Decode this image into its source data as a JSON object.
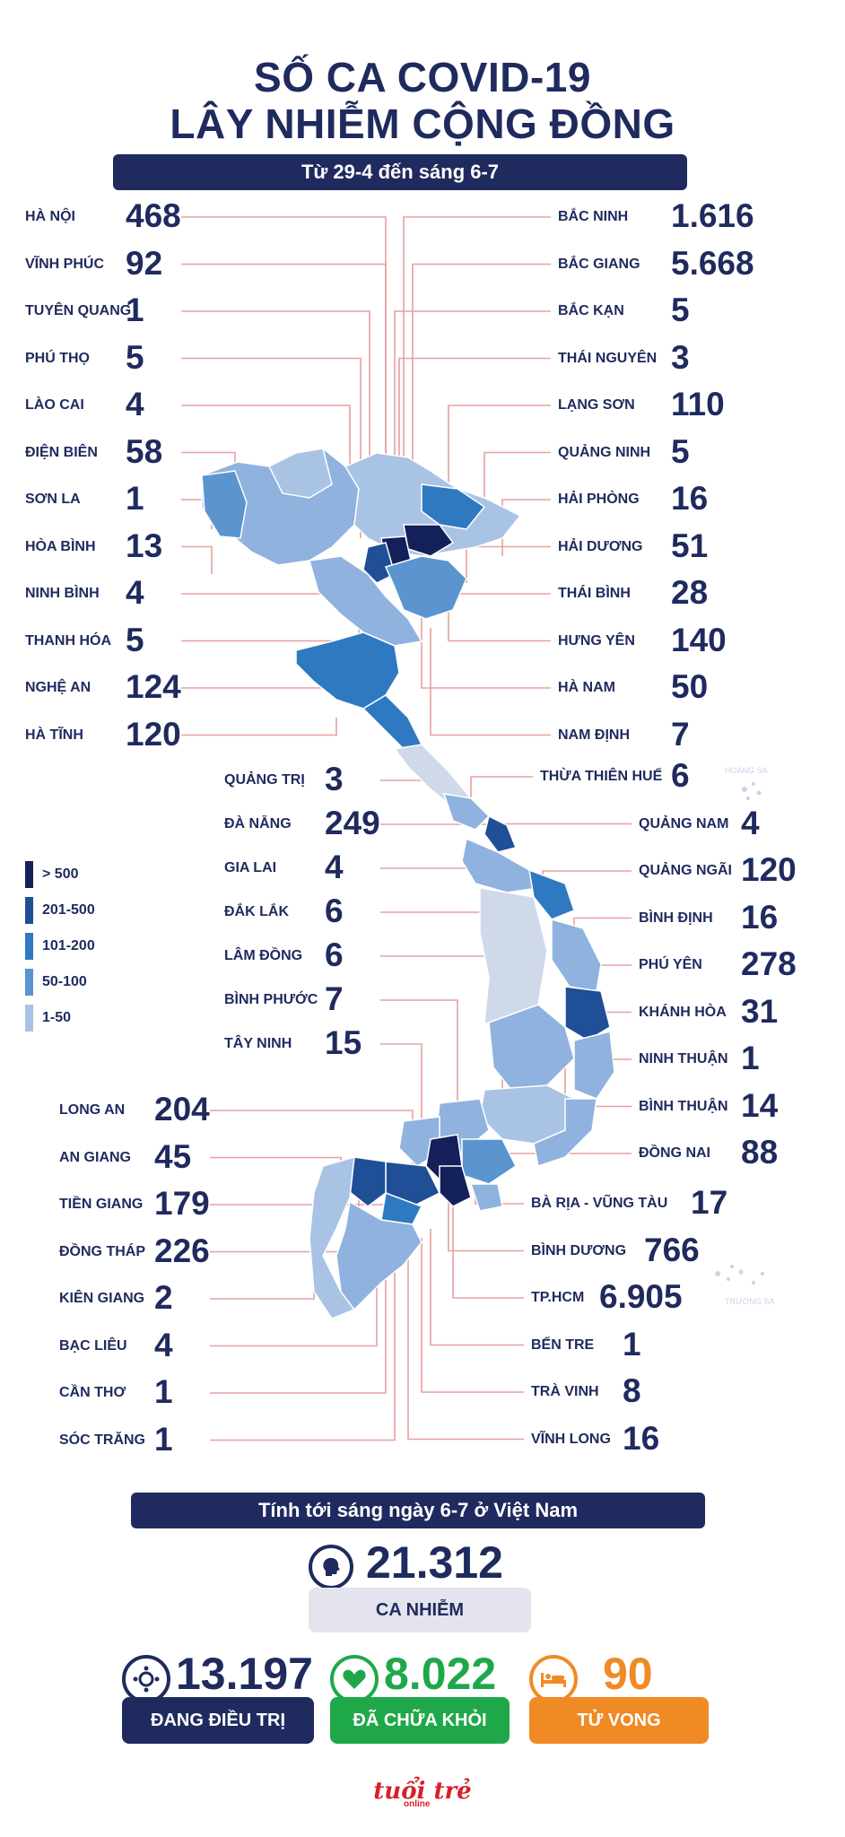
{
  "header": {
    "title_line1": "SỐ CA COVID-19",
    "title_line2": "LÂY NHIỄM CỘNG ĐỒNG",
    "period": "Từ 29-4 đến sáng 6-7"
  },
  "left_provinces": [
    {
      "name": "HÀ NỘI",
      "value": "468"
    },
    {
      "name": "VĨNH PHÚC",
      "value": "92"
    },
    {
      "name": "TUYÊN QUANG",
      "value": "1"
    },
    {
      "name": "PHÚ THỌ",
      "value": "5"
    },
    {
      "name": "LÀO CAI",
      "value": "4"
    },
    {
      "name": "ĐIỆN BIÊN",
      "value": "58"
    },
    {
      "name": "SƠN LA",
      "value": "1"
    },
    {
      "name": "HÒA BÌNH",
      "value": "13"
    },
    {
      "name": "NINH BÌNH",
      "value": "4"
    },
    {
      "name": "THANH HÓA",
      "value": "5"
    },
    {
      "name": "NGHỆ AN",
      "value": "124"
    },
    {
      "name": "HÀ TĨNH",
      "value": "120"
    }
  ],
  "right_provinces": [
    {
      "name": "BẮC NINH",
      "value": "1.616"
    },
    {
      "name": "BẮC GIANG",
      "value": "5.668"
    },
    {
      "name": "BẮC KẠN",
      "value": "5"
    },
    {
      "name": "THÁI NGUYÊN",
      "value": "3"
    },
    {
      "name": "LẠNG SƠN",
      "value": "110"
    },
    {
      "name": "QUẢNG NINH",
      "value": "5"
    },
    {
      "name": "HẢI PHÒNG",
      "value": "16"
    },
    {
      "name": "HẢI DƯƠNG",
      "value": "51"
    },
    {
      "name": "THÁI BÌNH",
      "value": "28"
    },
    {
      "name": "HƯNG YÊN",
      "value": "140"
    },
    {
      "name": "HÀ NAM",
      "value": "50"
    },
    {
      "name": "NAM ĐỊNH",
      "value": "7"
    }
  ],
  "middle_left_provinces": [
    {
      "name": "QUẢNG TRỊ",
      "value": "3"
    },
    {
      "name": "ĐÀ NẴNG",
      "value": "249"
    },
    {
      "name": "GIA LAI",
      "value": "4"
    },
    {
      "name": "ĐẮK LẮK",
      "value": "6"
    },
    {
      "name": "LÂM ĐỒNG",
      "value": "6"
    },
    {
      "name": "BÌNH PHƯỚC",
      "value": "7"
    },
    {
      "name": "TÂY NINH",
      "value": "15"
    }
  ],
  "middle_right_provinces": [
    {
      "name": "THỪA THIÊN HUẾ",
      "value": "6"
    },
    {
      "name": "QUẢNG NAM",
      "value": "4"
    },
    {
      "name": "QUẢNG NGÃI",
      "value": "120"
    },
    {
      "name": "BÌNH ĐỊNH",
      "value": "16"
    },
    {
      "name": "PHÚ YÊN",
      "value": "278"
    },
    {
      "name": "KHÁNH HÒA",
      "value": "31"
    },
    {
      "name": "NINH THUẬN",
      "value": "1"
    },
    {
      "name": "BÌNH THUẬN",
      "value": "14"
    },
    {
      "name": "ĐỒNG NAI",
      "value": "88"
    }
  ],
  "south_left_provinces": [
    {
      "name": "LONG AN",
      "value": "204"
    },
    {
      "name": "AN GIANG",
      "value": "45"
    },
    {
      "name": "TIỀN GIANG",
      "value": "179"
    },
    {
      "name": "ĐỒNG THÁP",
      "value": "226"
    },
    {
      "name": "KIÊN GIANG",
      "value": "2"
    },
    {
      "name": "BẠC LIÊU",
      "value": "4"
    },
    {
      "name": "CẦN THƠ",
      "value": "1"
    },
    {
      "name": "SÓC TRĂNG",
      "value": "1"
    }
  ],
  "south_right_provinces": [
    {
      "name": "BÀ RỊA - VŨNG TÀU",
      "value": "17"
    },
    {
      "name": "BÌNH DƯƠNG",
      "value": "766"
    },
    {
      "name": "TP.HCM",
      "value": "6.905"
    },
    {
      "name": "BẾN TRE",
      "value": "1"
    },
    {
      "name": "TRÀ VINH",
      "value": "8"
    },
    {
      "name": "VĨNH LONG",
      "value": "16"
    }
  ],
  "islands": {
    "paracel": "HOÀNG SA",
    "spratly": "TRƯỜNG SA"
  },
  "legend": [
    {
      "label": "> 500",
      "color": "#14205a"
    },
    {
      "label": "201-500",
      "color": "#1f4f96"
    },
    {
      "label": "101-200",
      "color": "#2f79c0"
    },
    {
      "label": "50-100",
      "color": "#5b95cf"
    },
    {
      "label": "1-50",
      "color": "#a9c3e5"
    }
  ],
  "summary": {
    "banner": "Tính tới sáng ngày 6-7 ở Việt Nam",
    "total_value": "21.312",
    "total_label": "CA NHIỄM",
    "treating_value": "13.197",
    "treating_label": "ĐANG ĐIỀU TRỊ",
    "recovered_value": "8.022",
    "recovered_label": "ĐÃ CHỮA KHỎI",
    "deaths_value": "90",
    "deaths_label": "TỬ VONG"
  },
  "brand": {
    "name": "tuổi trẻ",
    "sub": "online"
  },
  "colors": {
    "navy": "#1f2a5e",
    "green": "#1fa84a",
    "orange": "#f08a24",
    "grey_box": "#e4e4ee",
    "leader_line": "#e8a0a0"
  }
}
